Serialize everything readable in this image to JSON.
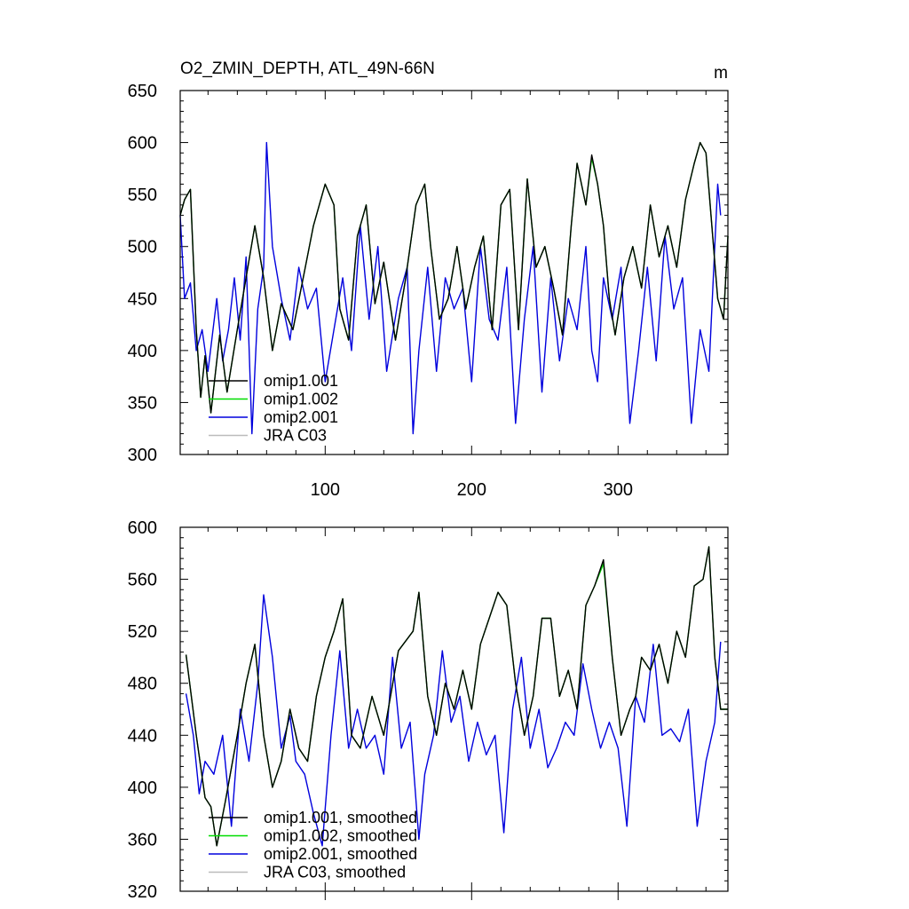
{
  "chart_data": [
    {
      "type": "line",
      "title": "O2_ZMIN_DEPTH, ATL_49N-66N",
      "units": "m",
      "xlabel": "",
      "ylabel": "",
      "xlim": [
        1,
        375
      ],
      "ylim": [
        300,
        650
      ],
      "xticks": [
        100,
        200,
        300
      ],
      "yticks": [
        300,
        350,
        400,
        450,
        500,
        550,
        600,
        650
      ],
      "legend_position": "bottom-left",
      "series": [
        {
          "name": "omip1.001",
          "color": "#000000",
          "x": [
            1,
            4,
            8,
            12,
            15,
            18,
            22,
            28,
            33,
            40,
            46,
            52,
            58,
            64,
            70,
            78,
            85,
            92,
            100,
            106,
            110,
            116,
            122,
            128,
            134,
            140,
            148,
            155,
            162,
            168,
            172,
            178,
            184,
            190,
            196,
            202,
            208,
            214,
            220,
            226,
            232,
            238,
            244,
            250,
            256,
            262,
            268,
            272,
            278,
            282,
            286,
            290,
            294,
            298,
            304,
            310,
            316,
            322,
            328,
            334,
            340,
            346,
            352,
            356,
            360,
            364,
            368,
            372,
            375
          ],
          "y": [
            530,
            545,
            555,
            420,
            355,
            395,
            340,
            415,
            360,
            420,
            470,
            520,
            470,
            400,
            445,
            420,
            470,
            520,
            560,
            540,
            440,
            410,
            510,
            540,
            445,
            485,
            410,
            470,
            540,
            560,
            500,
            430,
            450,
            500,
            440,
            480,
            510,
            420,
            540,
            555,
            420,
            565,
            480,
            500,
            460,
            415,
            520,
            580,
            540,
            588,
            560,
            520,
            450,
            415,
            470,
            500,
            460,
            540,
            490,
            520,
            480,
            545,
            580,
            600,
            590,
            520,
            450,
            430,
            510
          ]
        },
        {
          "name": "omip1.002",
          "color": "#00dd00",
          "x": [
            1,
            4,
            8,
            12,
            15,
            18,
            22,
            28,
            33,
            40,
            46,
            52,
            58,
            64,
            70,
            78,
            85,
            92,
            100,
            106,
            110,
            116,
            122,
            128,
            134,
            140,
            148,
            155,
            162,
            168,
            172,
            178,
            184,
            190,
            196,
            202,
            208,
            214,
            220,
            226,
            232,
            238,
            244,
            250,
            256,
            262,
            268,
            272,
            278,
            282,
            286,
            290,
            294,
            298,
            304,
            310,
            316,
            322,
            328,
            334,
            340,
            346,
            352,
            356,
            360,
            364,
            368,
            372,
            375
          ],
          "y": [
            530,
            545,
            555,
            420,
            355,
            395,
            340,
            415,
            360,
            420,
            470,
            520,
            470,
            400,
            445,
            420,
            470,
            520,
            560,
            540,
            440,
            410,
            510,
            540,
            445,
            485,
            410,
            470,
            540,
            560,
            500,
            430,
            450,
            500,
            440,
            480,
            510,
            420,
            540,
            555,
            420,
            565,
            480,
            500,
            460,
            415,
            520,
            580,
            540,
            585,
            560,
            520,
            450,
            415,
            470,
            500,
            460,
            540,
            490,
            520,
            480,
            545,
            580,
            600,
            590,
            520,
            450,
            430,
            510
          ]
        },
        {
          "name": "omip2.001",
          "color": "#0000dd",
          "x": [
            1,
            4,
            8,
            12,
            16,
            20,
            26,
            30,
            34,
            38,
            42,
            46,
            50,
            54,
            58,
            60,
            64,
            70,
            76,
            82,
            88,
            94,
            100,
            106,
            112,
            118,
            124,
            130,
            136,
            142,
            150,
            156,
            160,
            164,
            170,
            176,
            182,
            188,
            194,
            200,
            206,
            212,
            218,
            224,
            230,
            236,
            242,
            248,
            254,
            260,
            266,
            272,
            278,
            282,
            286,
            290,
            296,
            302,
            308,
            314,
            320,
            326,
            332,
            338,
            344,
            350,
            356,
            362,
            368,
            370
          ],
          "y": [
            530,
            450,
            465,
            400,
            420,
            380,
            450,
            390,
            420,
            470,
            410,
            490,
            320,
            440,
            480,
            600,
            500,
            450,
            410,
            480,
            440,
            460,
            370,
            420,
            470,
            400,
            520,
            430,
            500,
            380,
            450,
            480,
            320,
            400,
            480,
            380,
            470,
            440,
            460,
            370,
            500,
            430,
            410,
            480,
            330,
            430,
            500,
            360,
            470,
            390,
            450,
            420,
            500,
            400,
            370,
            470,
            430,
            480,
            330,
            400,
            480,
            390,
            510,
            440,
            470,
            330,
            420,
            380,
            560,
            530
          ]
        },
        {
          "name": "JRA C03",
          "color": "#bbbbbb",
          "x": [],
          "y": []
        }
      ]
    },
    {
      "type": "line",
      "title": "",
      "xlabel": "",
      "ylabel": "",
      "xlim": [
        1,
        375
      ],
      "ylim": [
        320,
        600
      ],
      "xticks": [
        100,
        200,
        300
      ],
      "yticks": [
        320,
        360,
        400,
        440,
        480,
        520,
        560,
        600
      ],
      "legend_position": "bottom-left",
      "series": [
        {
          "name": "omip1.001, smoothed",
          "color": "#000000",
          "x": [
            5,
            12,
            18,
            22,
            26,
            32,
            40,
            46,
            52,
            58,
            64,
            70,
            76,
            82,
            88,
            94,
            100,
            106,
            112,
            118,
            124,
            132,
            140,
            150,
            160,
            164,
            170,
            176,
            182,
            188,
            194,
            200,
            206,
            212,
            218,
            224,
            230,
            236,
            242,
            248,
            254,
            260,
            266,
            272,
            278,
            284,
            290,
            296,
            302,
            308,
            312,
            316,
            322,
            328,
            334,
            340,
            346,
            352,
            358,
            362,
            366,
            370,
            375
          ],
          "y": [
            502,
            440,
            392,
            385,
            355,
            390,
            440,
            480,
            510,
            440,
            400,
            420,
            460,
            430,
            420,
            470,
            500,
            520,
            545,
            440,
            430,
            470,
            440,
            505,
            520,
            550,
            470,
            440,
            480,
            460,
            490,
            460,
            510,
            530,
            550,
            540,
            480,
            440,
            470,
            530,
            530,
            470,
            490,
            460,
            540,
            555,
            575,
            500,
            440,
            460,
            470,
            500,
            490,
            510,
            480,
            520,
            500,
            555,
            560,
            585,
            500,
            460,
            460
          ]
        },
        {
          "name": "omip1.002, smoothed",
          "color": "#00dd00",
          "x": [
            5,
            12,
            18,
            22,
            26,
            32,
            40,
            46,
            52,
            58,
            64,
            70,
            76,
            82,
            88,
            94,
            100,
            106,
            112,
            118,
            124,
            132,
            140,
            150,
            160,
            164,
            170,
            176,
            182,
            188,
            194,
            200,
            206,
            212,
            218,
            224,
            230,
            236,
            242,
            248,
            254,
            260,
            266,
            272,
            278,
            284,
            290,
            296,
            302,
            308,
            312,
            316,
            322,
            328,
            334,
            340,
            346,
            352,
            358,
            362,
            366,
            370,
            375
          ],
          "y": [
            502,
            440,
            392,
            385,
            355,
            390,
            440,
            480,
            510,
            440,
            400,
            420,
            460,
            430,
            420,
            470,
            500,
            520,
            545,
            440,
            430,
            470,
            440,
            505,
            520,
            550,
            470,
            440,
            480,
            460,
            490,
            460,
            510,
            530,
            550,
            540,
            480,
            440,
            470,
            530,
            530,
            470,
            490,
            460,
            540,
            555,
            572,
            500,
            440,
            460,
            470,
            500,
            490,
            510,
            480,
            520,
            500,
            555,
            560,
            585,
            500,
            460,
            460
          ]
        },
        {
          "name": "omip2.001, smoothed",
          "color": "#0000dd",
          "x": [
            5,
            10,
            14,
            18,
            24,
            30,
            36,
            42,
            48,
            54,
            58,
            64,
            70,
            76,
            80,
            86,
            92,
            98,
            104,
            110,
            116,
            122,
            128,
            134,
            140,
            146,
            152,
            158,
            164,
            168,
            174,
            180,
            186,
            192,
            198,
            204,
            210,
            216,
            222,
            228,
            234,
            240,
            246,
            252,
            258,
            264,
            270,
            276,
            282,
            288,
            294,
            300,
            306,
            312,
            318,
            324,
            330,
            336,
            342,
            348,
            354,
            360,
            366,
            370
          ],
          "y": [
            472,
            440,
            395,
            420,
            410,
            440,
            370,
            460,
            420,
            480,
            548,
            500,
            430,
            455,
            420,
            410,
            380,
            355,
            440,
            505,
            430,
            460,
            430,
            440,
            410,
            500,
            430,
            450,
            360,
            410,
            440,
            505,
            450,
            470,
            420,
            450,
            425,
            440,
            365,
            460,
            500,
            430,
            460,
            415,
            430,
            450,
            440,
            495,
            460,
            430,
            450,
            430,
            370,
            470,
            450,
            510,
            440,
            445,
            435,
            460,
            370,
            420,
            450,
            512
          ]
        },
        {
          "name": "JRA C03, smoothed",
          "color": "#bbbbbb",
          "x": [],
          "y": []
        }
      ]
    }
  ]
}
